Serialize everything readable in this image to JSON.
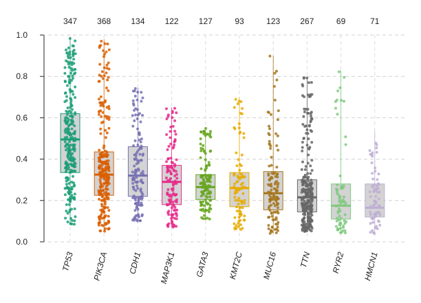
{
  "chart_data": {
    "type": "box",
    "title": "",
    "xlabel": "",
    "ylabel": "",
    "ylim": [
      0,
      1
    ],
    "yticks": [
      "0.0",
      "0.2",
      "0.4",
      "0.6",
      "0.8",
      "1.0"
    ],
    "grid": true,
    "point_overlay": "jittered",
    "categories": [
      "TP53",
      "PIK3CA",
      "CDH1",
      "MAP3K1",
      "GATA3",
      "KMT2C",
      "MUC16",
      "TTN",
      "RYR2",
      "HMCN1"
    ],
    "counts": [
      "347",
      "368",
      "134",
      "122",
      "127",
      "93",
      "123",
      "267",
      "69",
      "71"
    ],
    "colors": [
      "#1b9e77",
      "#d95f02",
      "#7570b3",
      "#e7298a",
      "#66a61e",
      "#e6ab02",
      "#a6761d",
      "#666666",
      "#7fc97f",
      "#beaed4"
    ],
    "boxes": [
      {
        "q1": 0.335,
        "median": 0.495,
        "q3": 0.62,
        "min": 0.08,
        "max": 0.985
      },
      {
        "q1": 0.225,
        "median": 0.325,
        "q3": 0.435,
        "min": 0.05,
        "max": 0.98
      },
      {
        "q1": 0.22,
        "median": 0.32,
        "q3": 0.46,
        "min": 0.1,
        "max": 0.745
      },
      {
        "q1": 0.18,
        "median": 0.29,
        "q3": 0.37,
        "min": 0.07,
        "max": 0.65
      },
      {
        "q1": 0.205,
        "median": 0.265,
        "q3": 0.325,
        "min": 0.11,
        "max": 0.555
      },
      {
        "q1": 0.17,
        "median": 0.26,
        "q3": 0.335,
        "min": 0.06,
        "max": 0.7
      },
      {
        "q1": 0.155,
        "median": 0.235,
        "q3": 0.34,
        "min": 0.04,
        "max": 0.9
      },
      {
        "q1": 0.145,
        "median": 0.215,
        "q3": 0.3,
        "min": 0.05,
        "max": 0.795
      },
      {
        "q1": 0.11,
        "median": 0.175,
        "q3": 0.28,
        "min": 0.04,
        "max": 0.83
      },
      {
        "q1": 0.12,
        "median": 0.165,
        "q3": 0.28,
        "min": 0.04,
        "max": 0.535
      }
    ]
  }
}
